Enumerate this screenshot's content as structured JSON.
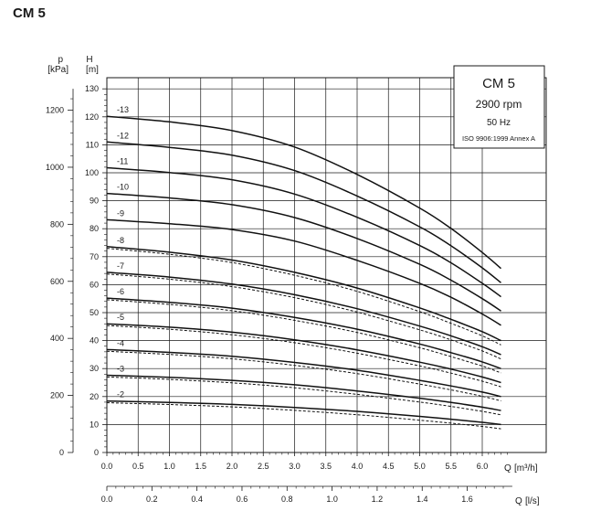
{
  "page_title": "CM 5",
  "chart_data": {
    "type": "line",
    "title": "CM 5",
    "legend_box": {
      "title": "CM 5",
      "speed": "2900 rpm",
      "frequency": "50 Hz",
      "standard": "ISO 9906:1999 Annex A",
      "placement": "top-right"
    },
    "grid": true,
    "x_axis": {
      "label_symbol": "Q",
      "label_unit": "[m³/h]",
      "range": [
        0,
        6.5
      ],
      "ticks": [
        "0.0",
        "0.5",
        "1.0",
        "1.5",
        "2.0",
        "2.5",
        "3.0",
        "3.5",
        "4.0",
        "4.5",
        "5.0",
        "5.5",
        "6.0"
      ]
    },
    "x_axis_secondary": {
      "label_symbol": "Q",
      "label_unit": "[l/s]",
      "range": [
        0,
        1.8056
      ],
      "ticks": [
        "0.0",
        "0.2",
        "0.4",
        "0.6",
        "0.8",
        "1.0",
        "1.2",
        "1.4",
        "1.6"
      ]
    },
    "y_axis_head": {
      "label_symbol": "H",
      "label_unit": "[m]",
      "range": [
        0,
        130
      ],
      "ticks": [
        "0",
        "10",
        "20",
        "30",
        "40",
        "50",
        "60",
        "70",
        "80",
        "90",
        "100",
        "110",
        "120",
        "130"
      ]
    },
    "y_axis_pressure": {
      "label_symbol": "p",
      "label_unit": "[kPa]",
      "range": [
        0,
        1275
      ],
      "ticks": [
        "0",
        "200",
        "400",
        "600",
        "800",
        "1000",
        "1200"
      ]
    },
    "series": [
      {
        "name": "-2",
        "dashed": true,
        "x": [
          0,
          1,
          2,
          3,
          4,
          5,
          5.5,
          6,
          6.3
        ],
        "y": [
          18.4,
          17.9,
          17.2,
          16.1,
          14.7,
          12.9,
          11.9,
          10.8,
          10.0
        ]
      },
      {
        "name": "-3",
        "dashed": true,
        "x": [
          0,
          1,
          2,
          3,
          4,
          5,
          5.5,
          6,
          6.3
        ],
        "y": [
          27.6,
          26.9,
          25.8,
          24.2,
          22.0,
          19.4,
          17.9,
          16.2,
          15.0
        ]
      },
      {
        "name": "-4",
        "dashed": true,
        "x": [
          0,
          1,
          2,
          3,
          4,
          5,
          5.5,
          6,
          6.3
        ],
        "y": [
          36.8,
          35.8,
          34.4,
          32.2,
          29.4,
          25.8,
          23.8,
          21.6,
          20.0
        ]
      },
      {
        "name": "-5",
        "dashed": true,
        "x": [
          0,
          1,
          2,
          3,
          4,
          5,
          5.5,
          6,
          6.3
        ],
        "y": [
          46.0,
          44.8,
          43.0,
          40.3,
          36.7,
          32.3,
          29.8,
          27.0,
          25.0
        ]
      },
      {
        "name": "-6",
        "dashed": true,
        "x": [
          0,
          1,
          2,
          3,
          4,
          5,
          5.5,
          6,
          6.3
        ],
        "y": [
          55.2,
          53.7,
          51.6,
          48.3,
          44.1,
          38.8,
          35.7,
          32.4,
          30.0
        ]
      },
      {
        "name": "-7",
        "dashed": true,
        "x": [
          0,
          1,
          2,
          3,
          4,
          5,
          5.5,
          6,
          6.3
        ],
        "y": [
          64.4,
          62.7,
          60.2,
          56.4,
          51.4,
          45.2,
          41.7,
          37.8,
          35.0
        ]
      },
      {
        "name": "-8",
        "dashed": true,
        "x": [
          0,
          1,
          2,
          3,
          4,
          5,
          5.5,
          6,
          6.3
        ],
        "y": [
          73.6,
          71.6,
          68.8,
          64.4,
          58.8,
          51.7,
          47.6,
          43.2,
          40.0
        ]
      },
      {
        "name": "-9",
        "dashed": false,
        "x": [
          0,
          1,
          2,
          3,
          4,
          5,
          5.5,
          6,
          6.3
        ],
        "y": [
          83.2,
          81.8,
          79.7,
          75.6,
          68.7,
          60.5,
          55.5,
          49.5,
          45.5
        ]
      },
      {
        "name": "-10",
        "dashed": false,
        "x": [
          0,
          1,
          2,
          3,
          4,
          5,
          5.5,
          6,
          6.3
        ],
        "y": [
          92.6,
          91.0,
          88.6,
          84.0,
          76.5,
          67.3,
          61.6,
          55.0,
          50.6
        ]
      },
      {
        "name": "-11",
        "dashed": false,
        "x": [
          0,
          1,
          2,
          3,
          4,
          5,
          5.5,
          6,
          6.3
        ],
        "y": [
          101.8,
          100.1,
          97.5,
          92.4,
          84.1,
          74.0,
          67.8,
          60.5,
          55.7
        ]
      },
      {
        "name": "-12",
        "dashed": false,
        "x": [
          0,
          1,
          2,
          3,
          4,
          5,
          5.5,
          6,
          6.3
        ],
        "y": [
          111.0,
          109.1,
          106.3,
          100.8,
          91.7,
          80.7,
          73.9,
          66.0,
          60.7
        ]
      },
      {
        "name": "-13",
        "dashed": false,
        "x": [
          0,
          1,
          2,
          3,
          4,
          5,
          5.5,
          6,
          6.3
        ],
        "y": [
          120.2,
          118.2,
          115.1,
          109.2,
          99.4,
          87.4,
          80.1,
          71.5,
          65.8
        ]
      }
    ]
  }
}
